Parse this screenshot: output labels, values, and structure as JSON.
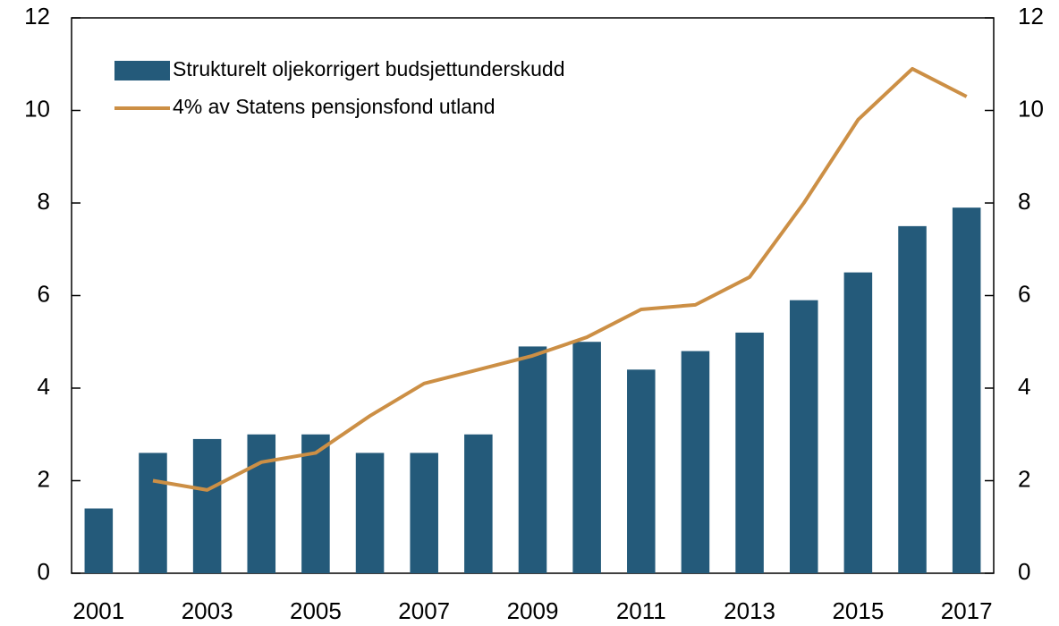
{
  "chart_data": {
    "type": "bar_line",
    "categories": [
      "2001",
      null,
      "2003",
      null,
      "2005",
      null,
      "2007",
      null,
      "2009",
      null,
      "2011",
      null,
      "2013",
      null,
      "2015",
      null,
      "2017"
    ],
    "series": [
      {
        "name": "Strukturelt oljekorrigert budsjettunderskudd",
        "type": "bar",
        "color": "#245a7a",
        "values": [
          1.4,
          2.6,
          2.9,
          3.0,
          3.0,
          2.6,
          2.6,
          3.0,
          4.9,
          5.0,
          4.4,
          4.8,
          5.2,
          5.9,
          6.5,
          7.5,
          7.9
        ]
      },
      {
        "name": "4% av Statens pensjonsfond utland",
        "type": "line",
        "color": "#cc8f45",
        "values": [
          null,
          2.0,
          1.8,
          2.4,
          2.6,
          3.4,
          4.1,
          4.4,
          4.7,
          5.1,
          5.7,
          5.8,
          6.4,
          8.0,
          9.8,
          10.9,
          10.3
        ]
      }
    ],
    "ylim": [
      0,
      12
    ],
    "yticks": [
      0,
      2,
      4,
      6,
      8,
      10,
      12
    ],
    "y2lim": [
      0,
      12
    ],
    "y2ticks": [
      0,
      2,
      4,
      6,
      8,
      10,
      12
    ],
    "legend": "upper left",
    "grid": false
  }
}
